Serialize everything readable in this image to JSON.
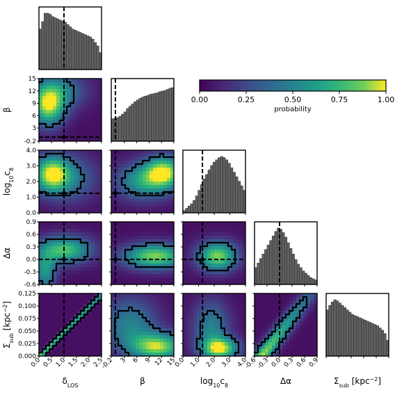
{
  "chart_data": {
    "type": "corner",
    "parameters": [
      {
        "key": "delta_los",
        "label": "δLOS",
        "range": [
          0,
          2.5
        ],
        "ticks": [
          "0.0",
          "0.5",
          "1.0",
          "1.5",
          "2.0",
          "2.5"
        ],
        "ticks_v": [
          0,
          0.5,
          1,
          1.5,
          2,
          2.5
        ],
        "truth": 1.0,
        "hist": [
          0.72,
          0.85,
          1.0,
          1.0,
          0.98,
          0.94,
          0.92,
          0.9,
          0.88,
          0.86,
          0.84,
          0.8,
          0.76,
          0.72,
          0.7,
          0.68,
          0.66,
          0.64,
          0.62,
          0.6,
          0.58,
          0.54,
          0.48,
          0.42,
          0.3
        ]
      },
      {
        "key": "beta",
        "label": "β",
        "range": [
          -0.2,
          15
        ],
        "ticks": [
          "-0.2",
          "3",
          "6",
          "9",
          "12",
          "15"
        ],
        "ticks_v": [
          -0.2,
          3,
          6,
          9,
          12,
          15
        ],
        "truth": 0.8,
        "hist": [
          0.4,
          0.4,
          0.42,
          0.44,
          0.48,
          0.52,
          0.58,
          0.62,
          0.66,
          0.7,
          0.73,
          0.76,
          0.78,
          0.8,
          0.81,
          0.83,
          0.84,
          0.85,
          0.86,
          0.88,
          0.89,
          0.9,
          0.92,
          0.94,
          0.95
        ]
      },
      {
        "key": "log10c8",
        "label": "log10c8",
        "range": [
          0,
          4
        ],
        "ticks": [
          "0.0",
          "1.0",
          "2.0",
          "3.0",
          "4.0"
        ],
        "ticks_v": [
          0,
          1,
          2,
          3,
          4
        ],
        "truth": 1.25,
        "hist": [
          0.04,
          0.08,
          0.12,
          0.16,
          0.22,
          0.3,
          0.4,
          0.5,
          0.6,
          0.68,
          0.76,
          0.84,
          0.9,
          0.94,
          0.98,
          1.0,
          0.98,
          0.94,
          0.88,
          0.8,
          0.72,
          0.64,
          0.56,
          0.48,
          0.4
        ]
      },
      {
        "key": "delta_alpha",
        "label": "Δα",
        "range": [
          -0.6,
          0.9
        ],
        "ticks": [
          "-0.6",
          "-0.3",
          "0.0",
          "0.3",
          "0.6",
          "0.9"
        ],
        "ticks_v": [
          -0.6,
          -0.3,
          0,
          0.3,
          0.6,
          0.9
        ],
        "truth": 0.0,
        "hist": [
          0.3,
          0.38,
          0.46,
          0.54,
          0.62,
          0.7,
          0.78,
          0.86,
          0.94,
          1.0,
          0.98,
          0.92,
          0.84,
          0.74,
          0.64,
          0.54,
          0.44,
          0.36,
          0.3,
          0.24,
          0.2,
          0.16,
          0.12,
          0.1,
          0.08
        ]
      },
      {
        "key": "sigma_sub",
        "label": "Σsub [kpc⁻²]",
        "range": [
          0,
          0.125
        ],
        "ticks": [
          "0.000",
          "0.025",
          "0.050",
          "0.075",
          "0.100",
          "0.125"
        ],
        "ticks_v": [
          0,
          0.025,
          0.05,
          0.075,
          0.1,
          0.125
        ],
        "ticks_y": [
          "0.000",
          "0.025",
          "0.050",
          "0.075",
          "0.100",
          "0.125"
        ],
        "truth": null,
        "hist": [
          0.82,
          0.9,
          0.96,
          1.0,
          0.98,
          0.94,
          0.9,
          0.86,
          0.82,
          0.78,
          0.74,
          0.72,
          0.7,
          0.68,
          0.66,
          0.64,
          0.62,
          0.6,
          0.58,
          0.56,
          0.54,
          0.5,
          0.46,
          0.4,
          0.28
        ]
      }
    ],
    "truth_beta_y": 0.8,
    "colorbar": {
      "label": "probability",
      "ticks": [
        "0.00",
        "0.25",
        "0.50",
        "0.75",
        "1.00"
      ],
      "range": [
        0,
        1
      ],
      "colormap": "viridis"
    }
  }
}
